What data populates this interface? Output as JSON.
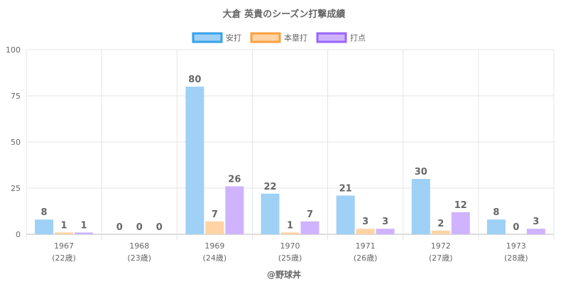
{
  "chart_data": {
    "type": "bar",
    "title": "大倉 英貴のシーズン打撃成績",
    "categories": [
      "1967",
      "1968",
      "1969",
      "1970",
      "1971",
      "1972",
      "1973"
    ],
    "sublabels": [
      "(22歳)",
      "(23歳)",
      "(24歳)",
      "(25歳)",
      "(26歳)",
      "(27歳)",
      "(28歳)"
    ],
    "series": [
      {
        "name": "安打",
        "values": [
          8,
          0,
          80,
          22,
          21,
          30,
          8
        ],
        "color": "#9fd0f5",
        "border": "#36a2eb"
      },
      {
        "name": "本塁打",
        "values": [
          1,
          0,
          7,
          1,
          3,
          2,
          0
        ],
        "color": "#ffd3a4",
        "border": "#ff9f40"
      },
      {
        "name": "打点",
        "values": [
          1,
          0,
          26,
          7,
          3,
          12,
          3
        ],
        "color": "#cfb3ff",
        "border": "#9966ff"
      }
    ],
    "ylim": [
      0,
      100
    ],
    "yticks": [
      0,
      25,
      50,
      75,
      100
    ],
    "grid": true,
    "legend": "top",
    "footer": "@野球丼"
  }
}
